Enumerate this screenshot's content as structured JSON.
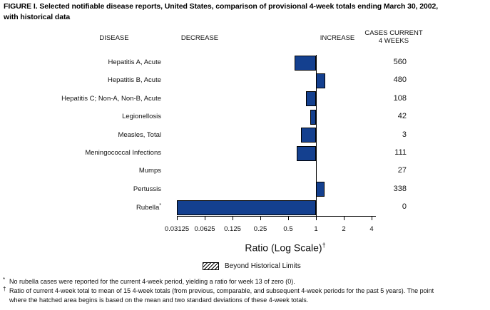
{
  "title": {
    "line1": "FIGURE I. Selected notifiable disease reports, United States, comparison of provisional 4-week totals ending March 30, 2002,",
    "line2": "with historical data"
  },
  "columns": {
    "disease": "DISEASE",
    "decrease": "DECREASE",
    "increase": "INCREASE",
    "cases_line1": "CASES CURRENT",
    "cases_line2": "4 WEEKS"
  },
  "chart_data": {
    "type": "bar",
    "orientation": "horizontal",
    "scale": "log2",
    "xlabel": "Ratio (Log Scale)",
    "xlabel_sup": "†",
    "xlim": [
      0.03125,
      4
    ],
    "baseline_ratio": 1,
    "tick_values": [
      0.03125,
      0.0625,
      0.125,
      0.25,
      0.5,
      1,
      2,
      4
    ],
    "tick_labels": [
      "0.03125",
      "0.0625",
      "0.125",
      "0.25",
      "0.5",
      "1",
      "2",
      "4"
    ],
    "bar_color": "#14408f",
    "legend": {
      "label": "Beyond Historical Limits",
      "swatch": "hatched-diagonal"
    },
    "rows": [
      {
        "disease": "Hepatitis A, Acute",
        "label_sup": "",
        "ratio": 0.59,
        "ratio_display": 0.59,
        "cases": "560"
      },
      {
        "disease": "Hepatitis B, Acute",
        "label_sup": "",
        "ratio": 1.26,
        "ratio_display": 1.26,
        "cases": "480"
      },
      {
        "disease": "Hepatitis C; Non-A, Non-B, Acute",
        "label_sup": "",
        "ratio": 0.78,
        "ratio_display": 0.78,
        "cases": "108"
      },
      {
        "disease": "Legionellosis",
        "label_sup": "",
        "ratio": 0.87,
        "ratio_display": 0.87,
        "cases": "42"
      },
      {
        "disease": "Measles, Total",
        "label_sup": "",
        "ratio": 0.69,
        "ratio_display": 0.69,
        "cases": "3"
      },
      {
        "disease": "Meningococcal Infections",
        "label_sup": "",
        "ratio": 0.62,
        "ratio_display": 0.62,
        "cases": "111"
      },
      {
        "disease": "Mumps",
        "label_sup": "",
        "ratio": 1.0,
        "ratio_display": 1.0,
        "cases": "27"
      },
      {
        "disease": "Pertussis",
        "label_sup": "",
        "ratio": 1.24,
        "ratio_display": 1.24,
        "cases": "338"
      },
      {
        "disease": "Rubella",
        "label_sup": "*",
        "ratio": 0,
        "ratio_display": 0.03125,
        "cases": "0"
      }
    ]
  },
  "footnotes": [
    {
      "marker": "*",
      "text": "No rubella cases were reported for the current 4-week period, yielding a ratio for week 13 of zero (0)."
    },
    {
      "marker": "†",
      "text": "Ratio of current 4-week total to mean of 15 4-week totals (from previous, comparable, and subsequent 4-week periods for the past 5 years). The point"
    },
    {
      "marker": "",
      "text": "where the hatched area begins is based on the mean and two standard deviations of these 4-week totals."
    }
  ]
}
